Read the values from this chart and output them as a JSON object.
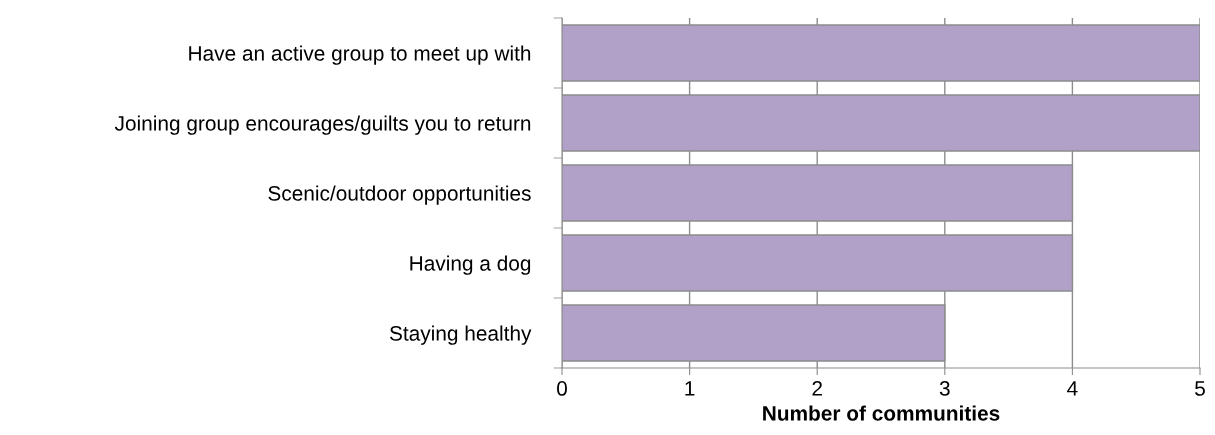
{
  "chart_data": {
    "type": "bar",
    "orientation": "horizontal",
    "xlabel": "Number of communities",
    "categories": [
      "Have an active group to meet up with",
      "Joining group encourages/guilts you to return",
      "Scenic/outdoor opportunities",
      "Having a dog",
      "Staying healthy"
    ],
    "values": [
      5,
      5,
      4,
      4,
      3
    ],
    "color": "#b1a1c9",
    "xlim": [
      0,
      5
    ],
    "xticks": [
      0,
      1,
      2,
      3,
      4,
      5
    ],
    "grid": "x",
    "legend": false
  }
}
